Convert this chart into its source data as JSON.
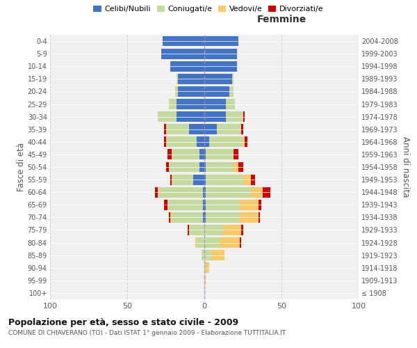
{
  "age_groups": [
    "100+",
    "95-99",
    "90-94",
    "85-89",
    "80-84",
    "75-79",
    "70-74",
    "65-69",
    "60-64",
    "55-59",
    "50-54",
    "45-49",
    "40-44",
    "35-39",
    "30-34",
    "25-29",
    "20-24",
    "15-19",
    "10-14",
    "5-9",
    "0-4"
  ],
  "birth_years": [
    "≤ 1908",
    "1909-1913",
    "1914-1918",
    "1919-1923",
    "1924-1928",
    "1929-1933",
    "1934-1938",
    "1939-1943",
    "1944-1948",
    "1949-1953",
    "1954-1958",
    "1959-1963",
    "1964-1968",
    "1969-1973",
    "1974-1978",
    "1979-1983",
    "1984-1988",
    "1989-1993",
    "1994-1998",
    "1999-2003",
    "2004-2008"
  ],
  "males": {
    "celibe": [
      0,
      0,
      0,
      0,
      0,
      0,
      1,
      1,
      1,
      7,
      3,
      3,
      5,
      10,
      18,
      18,
      17,
      17,
      22,
      28,
      27
    ],
    "coniugato": [
      0,
      0,
      0,
      2,
      5,
      10,
      20,
      23,
      29,
      14,
      20,
      18,
      20,
      15,
      12,
      5,
      2,
      1,
      0,
      0,
      0
    ],
    "vedovo": [
      0,
      0,
      0,
      0,
      1,
      0,
      1,
      0,
      0,
      0,
      0,
      0,
      0,
      0,
      0,
      0,
      0,
      0,
      0,
      0,
      0
    ],
    "divorziato": [
      0,
      0,
      0,
      0,
      0,
      1,
      1,
      2,
      2,
      1,
      2,
      3,
      1,
      1,
      0,
      0,
      0,
      0,
      0,
      0,
      0
    ]
  },
  "females": {
    "nubile": [
      0,
      0,
      0,
      0,
      0,
      0,
      1,
      1,
      1,
      1,
      1,
      1,
      3,
      8,
      14,
      14,
      16,
      18,
      21,
      21,
      22
    ],
    "coniugata": [
      0,
      0,
      1,
      5,
      10,
      12,
      22,
      22,
      29,
      24,
      18,
      18,
      22,
      16,
      11,
      6,
      3,
      1,
      0,
      0,
      0
    ],
    "vedova": [
      0,
      1,
      2,
      8,
      13,
      12,
      12,
      12,
      8,
      5,
      3,
      0,
      1,
      0,
      0,
      0,
      0,
      0,
      0,
      0,
      0
    ],
    "divorziata": [
      0,
      0,
      0,
      0,
      1,
      1,
      1,
      2,
      5,
      3,
      3,
      3,
      2,
      1,
      1,
      0,
      0,
      0,
      0,
      0,
      0
    ]
  },
  "colors": {
    "celibe_nubile": "#4472C4",
    "coniugato_a": "#C5D9A0",
    "vedovo_a": "#F9C96A",
    "divorziato_a": "#CC0000"
  },
  "title": "Popolazione per età, sesso e stato civile - 2009",
  "subtitle": "COMUNE DI CHIAVERANO (TO) - Dati ISTAT 1° gennaio 2009 - Elaborazione TUTTITALIA.IT",
  "xlabel_right": "Femmine",
  "ylabel_left": "Fasce di età",
  "ylabel_right": "Anni di nascita",
  "legend_labels": [
    "Celibi/Nubili",
    "Coniugati/e",
    "Vedovi/e",
    "Divorziati/e"
  ],
  "xlim": 100,
  "bg_color": "#ffffff",
  "plot_bg_color": "#f0f0f0"
}
